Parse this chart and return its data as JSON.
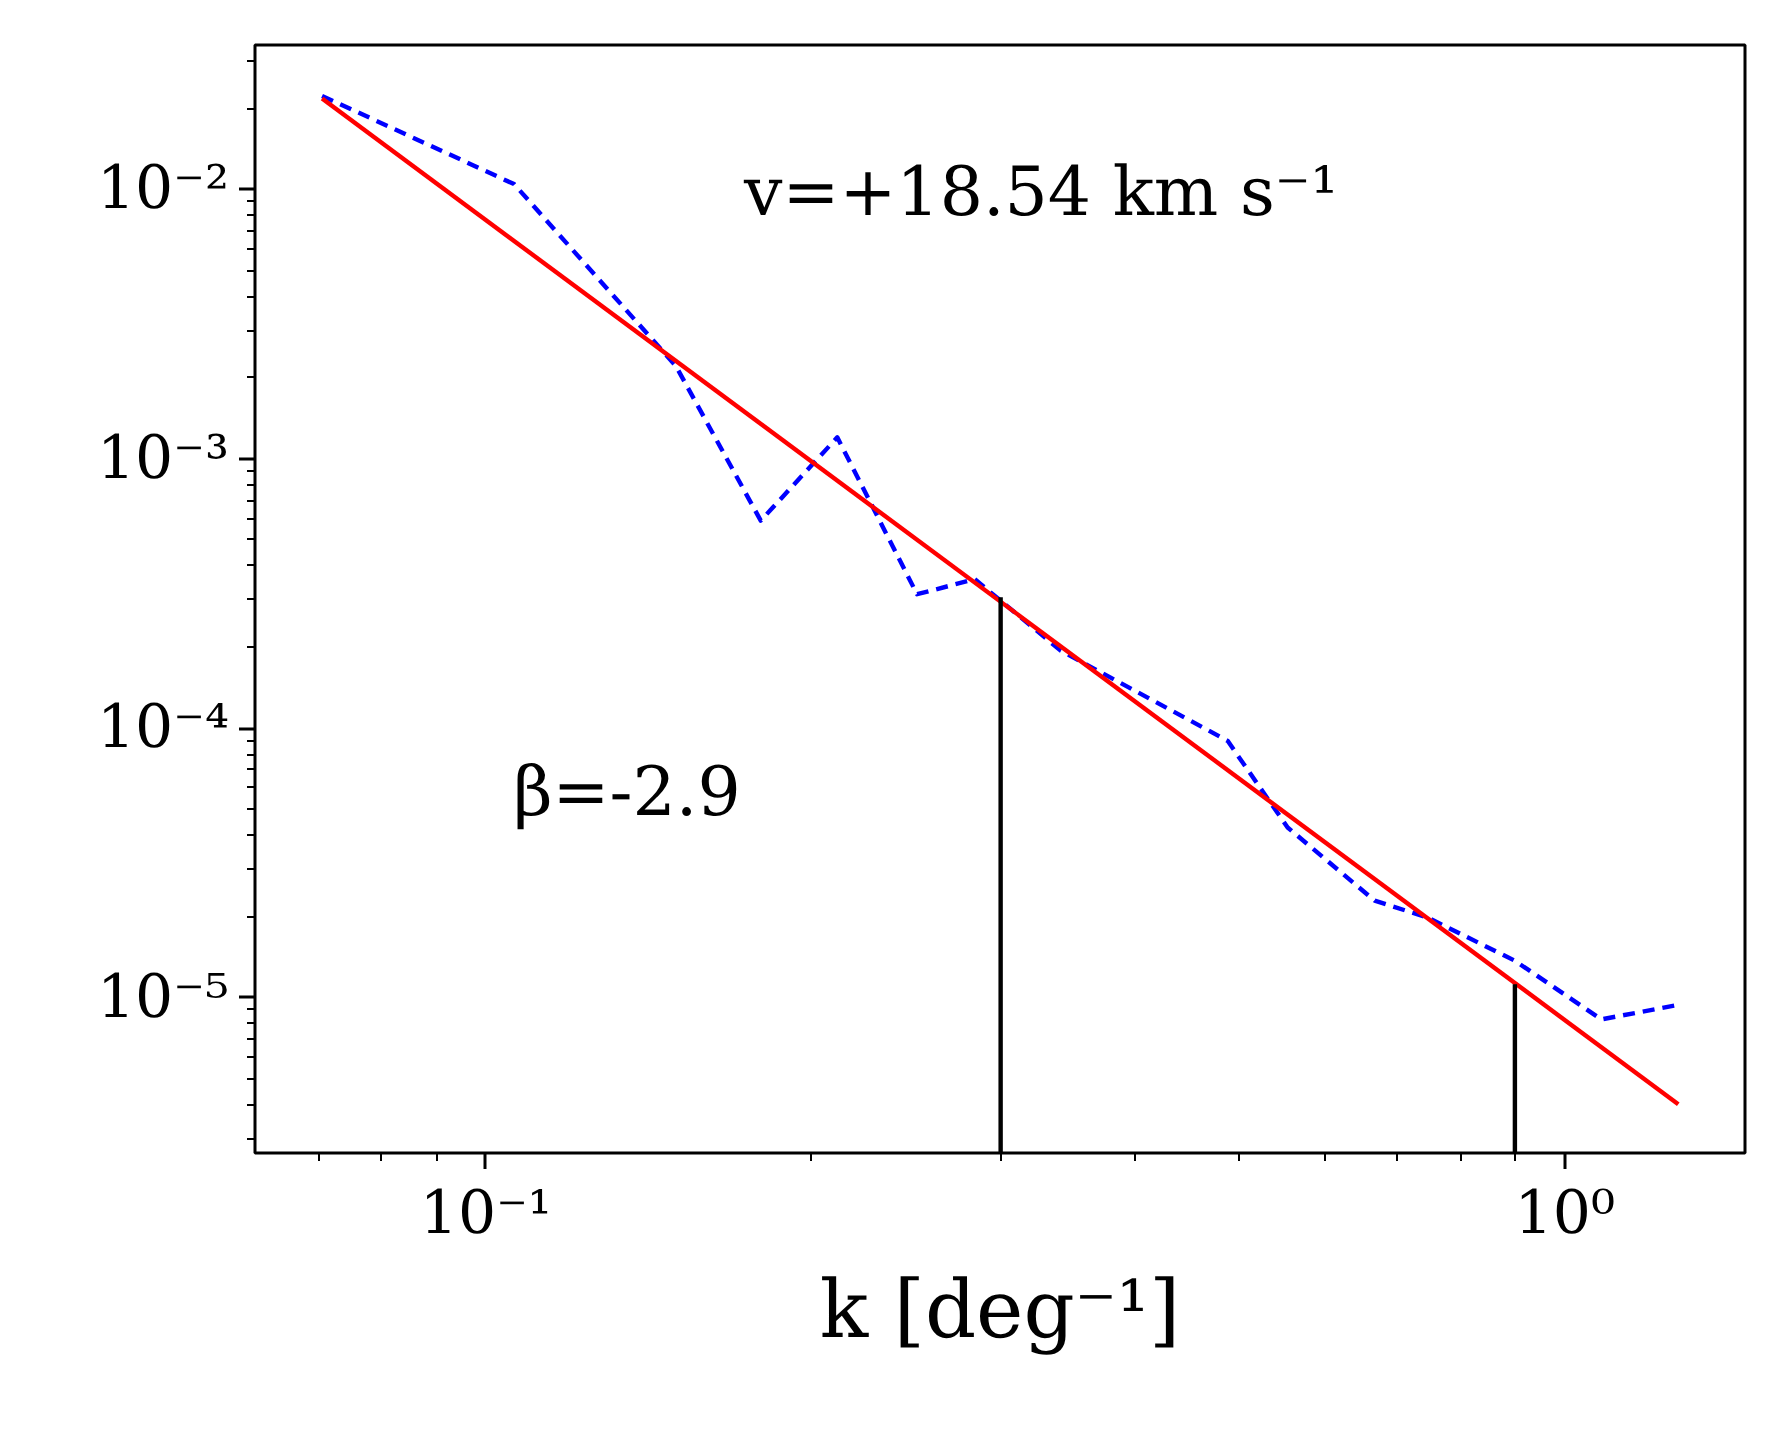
{
  "chart_data": {
    "type": "line",
    "xlabel": "k [deg⁻¹]",
    "log": "xy",
    "grid": false,
    "marker": "none",
    "xlim": [
      0.0611,
      1.469
    ],
    "ylim": [
      2.65e-06,
      0.0343
    ],
    "xticks": [
      {
        "value": 0.1,
        "label": "10⁻¹"
      },
      {
        "value": 1,
        "label": "10⁰"
      }
    ],
    "yticks": [
      {
        "value": 1e-05,
        "label": "10⁻⁵"
      },
      {
        "value": 0.0001,
        "label": "10⁻⁴"
      },
      {
        "value": 0.001,
        "label": "10⁻³"
      },
      {
        "value": 0.01,
        "label": "10⁻²"
      }
    ],
    "series": [
      {
        "color": "#0000ff",
        "line_style": "dashed",
        "x": [
          0.0705,
          0.1062,
          0.15,
          0.1798,
          0.2117,
          0.251,
          0.2839,
          0.341,
          0.487,
          0.5535,
          0.6665,
          0.7465,
          0.899,
          1.081,
          1.265
        ],
        "values": [
          0.0222,
          0.01045,
          0.00221,
          0.000589,
          0.0012,
          0.000314,
          0.000357,
          0.000194,
          8.97e-05,
          4.28e-05,
          2.29e-05,
          1.98e-05,
          1.37e-05,
          8.3e-06,
          9.35e-06
        ]
      },
      {
        "color": "#ff0000",
        "line_style": "solid",
        "x": [
          0.0705,
          1.274
        ],
        "values": [
          0.0217,
          4.02e-06
        ]
      },
      {
        "color": "#000000",
        "line_style": "solid",
        "x": [
          0.3,
          0.3
        ],
        "values": [
          2.65e-06,
          0.000306
        ]
      },
      {
        "color": "#000000",
        "line_style": "solid",
        "x": [
          0.899,
          0.899
        ],
        "values": [
          2.65e-06,
          1.12e-05
        ]
      }
    ],
    "annotations": [
      "v=+18.54 km s⁻¹",
      "β=-2.9"
    ]
  }
}
